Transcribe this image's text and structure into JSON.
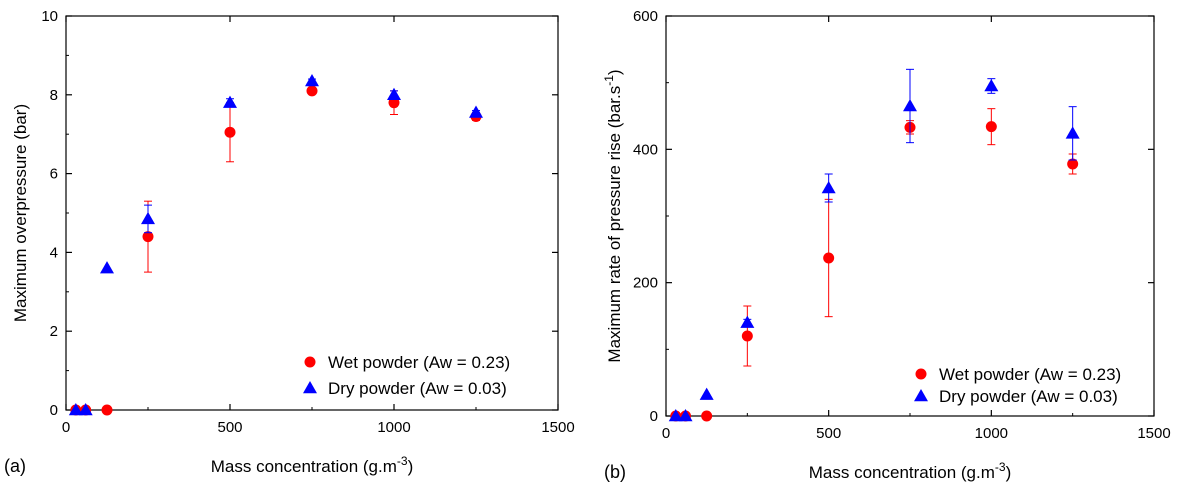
{
  "chart_data": [
    {
      "type": "scatter",
      "panel_label": "(a)",
      "xlabel": "Mass concentration (g.m",
      "xlabel_sup": "-3",
      "xlabel_end": ")",
      "ylabel": "Maximum overpressure (bar)",
      "xlim": [
        0,
        1500
      ],
      "ylim": [
        0,
        10
      ],
      "xticks": [
        0,
        500,
        1000,
        1500
      ],
      "yticks": [
        0,
        2,
        4,
        6,
        8,
        10
      ],
      "xtick_labels": [
        "0",
        "500",
        "1000",
        "1500"
      ],
      "ytick_labels": [
        "0",
        "2",
        "4",
        "6",
        "8",
        "10"
      ],
      "legend_position": "bottom-right",
      "series": [
        {
          "name": "Wet powder (Aw = 0.23)",
          "marker": "circle",
          "color": "#ff0000",
          "points": [
            {
              "x": 30,
              "y": 0,
              "err": 0
            },
            {
              "x": 60,
              "y": 0,
              "err": 0
            },
            {
              "x": 125,
              "y": 0,
              "err": 0
            },
            {
              "x": 250,
              "y": 4.4,
              "err": 0.9
            },
            {
              "x": 500,
              "y": 7.05,
              "err": 0.75
            },
            {
              "x": 750,
              "y": 8.1,
              "err": 0.08
            },
            {
              "x": 1000,
              "y": 7.8,
              "err": 0.3
            },
            {
              "x": 1250,
              "y": 7.45,
              "err": 0.1
            }
          ]
        },
        {
          "name": "Dry powder (Aw = 0.03)",
          "marker": "triangle",
          "color": "#0000ff",
          "points": [
            {
              "x": 30,
              "y": 0,
              "err": 0
            },
            {
              "x": 60,
              "y": 0,
              "err": 0
            },
            {
              "x": 125,
              "y": 3.6,
              "err": 0
            },
            {
              "x": 250,
              "y": 4.85,
              "err": 0.35
            },
            {
              "x": 500,
              "y": 7.8,
              "err": 0.1
            },
            {
              "x": 750,
              "y": 8.35,
              "err": 0.05
            },
            {
              "x": 1000,
              "y": 8.0,
              "err": 0.1
            },
            {
              "x": 1250,
              "y": 7.55,
              "err": 0.05
            }
          ]
        }
      ]
    },
    {
      "type": "scatter",
      "panel_label": "(b)",
      "xlabel": "Mass concentration (g.m",
      "xlabel_sup": "-3",
      "xlabel_end": ")",
      "ylabel": "Maximum rate of pressure rise (bar.s",
      "ylabel_sup": "-1",
      "ylabel_end": ")",
      "xlim": [
        0,
        1500
      ],
      "ylim": [
        0,
        600
      ],
      "xticks": [
        0,
        500,
        1000,
        1500
      ],
      "yticks": [
        0,
        200,
        400,
        600
      ],
      "xtick_labels": [
        "0",
        "500",
        "1000",
        "1500"
      ],
      "ytick_labels": [
        "0",
        "200",
        "400",
        "600"
      ],
      "legend_position": "bottom-right",
      "series": [
        {
          "name": "Wet powder (Aw = 0.23)",
          "marker": "circle",
          "color": "#ff0000",
          "points": [
            {
              "x": 30,
              "y": 0,
              "err": 0
            },
            {
              "x": 60,
              "y": 0,
              "err": 0
            },
            {
              "x": 125,
              "y": 0,
              "err": 0
            },
            {
              "x": 250,
              "y": 120,
              "err": 45
            },
            {
              "x": 500,
              "y": 237,
              "err": 88
            },
            {
              "x": 750,
              "y": 433,
              "err": 10
            },
            {
              "x": 1000,
              "y": 434,
              "err": 27
            },
            {
              "x": 1250,
              "y": 378,
              "err": 15
            }
          ]
        },
        {
          "name": "Dry powder (Aw = 0.03)",
          "marker": "triangle",
          "color": "#0000ff",
          "points": [
            {
              "x": 30,
              "y": 0,
              "err": 0
            },
            {
              "x": 60,
              "y": 0,
              "err": 0
            },
            {
              "x": 125,
              "y": 32,
              "err": 0
            },
            {
              "x": 250,
              "y": 140,
              "err": 5
            },
            {
              "x": 500,
              "y": 342,
              "err": 21
            },
            {
              "x": 750,
              "y": 465,
              "err": 55
            },
            {
              "x": 1000,
              "y": 495,
              "err": 11
            },
            {
              "x": 1250,
              "y": 424,
              "err": 40
            }
          ]
        }
      ]
    }
  ]
}
